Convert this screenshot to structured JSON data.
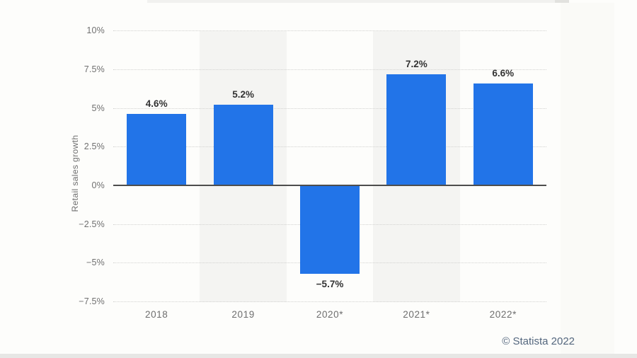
{
  "chart_data": {
    "type": "bar",
    "categories": [
      "2018",
      "2019",
      "2020*",
      "2021*",
      "2022*"
    ],
    "values": [
      4.6,
      5.2,
      -5.7,
      7.2,
      6.6
    ],
    "value_labels": [
      "4.6%",
      "5.2%",
      "−5.7%",
      "7.2%",
      "6.6%"
    ],
    "title": "",
    "xlabel": "",
    "ylabel": "Retail sales growth",
    "ylim": [
      -7.5,
      10
    ],
    "yticks": [
      10,
      7.5,
      5,
      2.5,
      0,
      -2.5,
      -5,
      -7.5
    ],
    "ytick_labels": [
      "10%",
      "7.5%",
      "5%",
      "2.5%",
      "0%",
      "−2.5%",
      "−5%",
      "−7.5%"
    ],
    "grid": "horizontal-dotted",
    "legend": "none",
    "bar_color": "#2274e8",
    "band_color": "#f4f4f2",
    "shaded_columns": [
      1,
      3
    ]
  },
  "footer": {
    "copyright": "© Statista 2022",
    "copyright_color": "#54677e"
  }
}
